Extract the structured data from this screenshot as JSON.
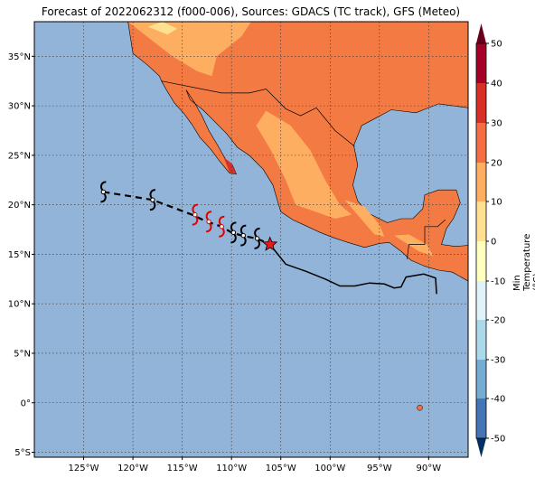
{
  "title": "Forecast of 2022062312 (f000-006), Sources: GDACS (TC track), GFS (Meteo)",
  "map": {
    "lon_range": [
      -130,
      -86
    ],
    "lat_range": [
      -5.5,
      38.5
    ],
    "lon_ticks": [
      {
        "v": -125,
        "label": "125°W"
      },
      {
        "v": -120,
        "label": "120°W"
      },
      {
        "v": -115,
        "label": "115°W"
      },
      {
        "v": -110,
        "label": "110°W"
      },
      {
        "v": -105,
        "label": "105°W"
      },
      {
        "v": -100,
        "label": "100°W"
      },
      {
        "v": -95,
        "label": "95°W"
      },
      {
        "v": -90,
        "label": "90°W"
      }
    ],
    "lat_ticks": [
      {
        "v": 35,
        "label": "35°N"
      },
      {
        "v": 30,
        "label": "30°N"
      },
      {
        "v": 25,
        "label": "25°N"
      },
      {
        "v": 20,
        "label": "20°N"
      },
      {
        "v": 15,
        "label": "15°N"
      },
      {
        "v": 10,
        "label": "10°N"
      },
      {
        "v": 5,
        "label": "5°N"
      },
      {
        "v": 0,
        "label": "0°"
      },
      {
        "v": -5,
        "label": "5°S"
      }
    ],
    "ocean_color": "#92b4d8",
    "land_base_color": "#f47a43"
  },
  "track": {
    "forecast_points": [
      [
        -123.0,
        21.3
      ],
      [
        -118.0,
        20.5
      ],
      [
        -114.0,
        19.0
      ],
      [
        -112.5,
        18.3
      ],
      [
        -111.0,
        17.8
      ],
      [
        -110.0,
        17.2
      ],
      [
        -109.0,
        16.9
      ],
      [
        -107.5,
        16.6
      ],
      [
        -106.0,
        16.0
      ]
    ],
    "symbols": [
      {
        "lon": -123.0,
        "lat": 21.3,
        "color": "#000000"
      },
      {
        "lon": -118.0,
        "lat": 20.5,
        "color": "#000000"
      },
      {
        "lon": -113.7,
        "lat": 19.0,
        "color": "#e00000"
      },
      {
        "lon": -112.3,
        "lat": 18.3,
        "color": "#e00000"
      },
      {
        "lon": -111.0,
        "lat": 17.8,
        "color": "#e00000"
      },
      {
        "lon": -109.8,
        "lat": 17.2,
        "color": "#000000"
      },
      {
        "lon": -108.8,
        "lat": 16.9,
        "color": "#000000"
      },
      {
        "lon": -107.4,
        "lat": 16.6,
        "color": "#000000"
      }
    ],
    "current_position": {
      "lon": -106.1,
      "lat": 16.0,
      "color": "#e41a1c"
    },
    "coastline_track": [
      [
        -106.1,
        16.0
      ],
      [
        -104.5,
        14.0
      ],
      [
        -102.5,
        13.3
      ],
      [
        -100.5,
        12.5
      ],
      [
        -99.0,
        11.8
      ],
      [
        -97.5,
        11.8
      ],
      [
        -96.0,
        12.1
      ],
      [
        -94.5,
        12.0
      ],
      [
        -93.5,
        11.6
      ],
      [
        -92.8,
        11.7
      ],
      [
        -92.3,
        12.7
      ],
      [
        -90.5,
        13.0
      ],
      [
        -89.3,
        12.6
      ],
      [
        -89.2,
        11.0
      ]
    ]
  },
  "colorbar": {
    "label": "Min Temperature (°C)",
    "ticks": [
      50,
      40,
      30,
      20,
      10,
      0,
      -10,
      -20,
      -30,
      -40,
      -50
    ],
    "colors": [
      "#67001f",
      "#b2182b",
      "#d6604d",
      "#f4a582",
      "#fddbc7",
      "#f7f7f7",
      "#d1e5f0",
      "#92c5de",
      "#4393c3",
      "#2166ac",
      "#053061"
    ],
    "bands": [
      "#a50026",
      "#d73027",
      "#f46d43",
      "#fdae61",
      "#fee090",
      "#ffffbf",
      "#e0f3f8",
      "#abd9e9",
      "#74add1",
      "#4575b4",
      "#313695"
    ]
  }
}
